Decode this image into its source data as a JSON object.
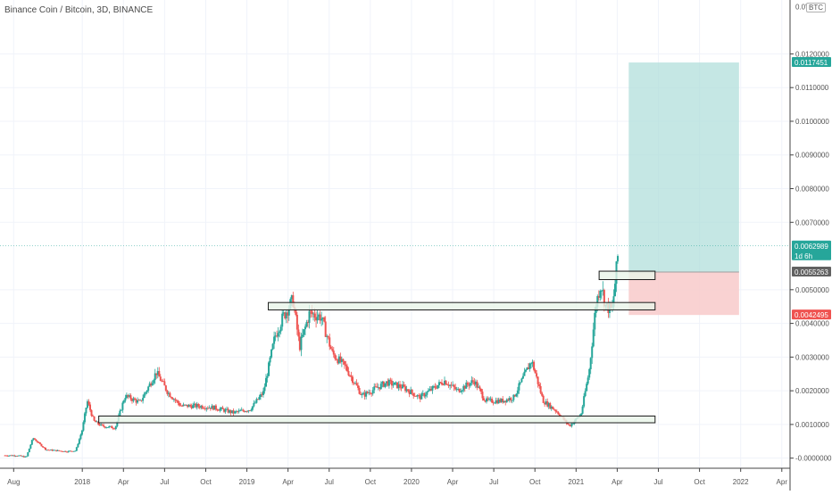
{
  "header": {
    "title": "Binance Coin / Bitcoin, 3D, BINANCE",
    "currency": "BTC"
  },
  "chart_data": {
    "type": "candlestick",
    "title": "Binance Coin / Bitcoin, 3D, BINANCE",
    "ylim": [
      -0.0003,
      0.0136
    ],
    "y_ticks": [
      "0.0120000",
      "0.0110000",
      "0.0100000",
      "0.0090000",
      "0.0080000",
      "0.0070000",
      "0.0050000",
      "0.0040000",
      "0.0030000",
      "0.0020000",
      "0.0010000",
      "-0.0000000"
    ],
    "y_tick_values": [
      0.012,
      0.011,
      0.01,
      0.009,
      0.008,
      0.007,
      0.005,
      0.004,
      0.003,
      0.002,
      0.001,
      0.0
    ],
    "x_ticks": [
      {
        "label": "Aug",
        "t": 2017.583
      },
      {
        "label": "2018",
        "t": 2018.0
      },
      {
        "label": "Apr",
        "t": 2018.25
      },
      {
        "label": "Jul",
        "t": 2018.5
      },
      {
        "label": "Oct",
        "t": 2018.75
      },
      {
        "label": "2019",
        "t": 2019.0
      },
      {
        "label": "Apr",
        "t": 2019.25
      },
      {
        "label": "Jul",
        "t": 2019.5
      },
      {
        "label": "Oct",
        "t": 2019.75
      },
      {
        "label": "2020",
        "t": 2020.0
      },
      {
        "label": "Apr",
        "t": 2020.25
      },
      {
        "label": "Jul",
        "t": 2020.5
      },
      {
        "label": "Oct",
        "t": 2020.75
      },
      {
        "label": "2021",
        "t": 2021.0
      },
      {
        "label": "Apr",
        "t": 2021.25
      },
      {
        "label": "Jul",
        "t": 2021.5
      },
      {
        "label": "Oct",
        "t": 2021.75
      },
      {
        "label": "2022",
        "t": 2022.0
      },
      {
        "label": "Apr",
        "t": 2022.25
      }
    ],
    "x_range": [
      2017.5,
      2022.3
    ],
    "price_keypoints": [
      [
        2017.53,
        8e-05
      ],
      [
        2017.6,
        8e-05
      ],
      [
        2017.66,
        3e-05
      ],
      [
        2017.7,
        0.0006
      ],
      [
        2017.78,
        0.00025
      ],
      [
        2017.9,
        0.0002
      ],
      [
        2017.96,
        0.00022
      ],
      [
        2018.0,
        0.00085
      ],
      [
        2018.03,
        0.0017
      ],
      [
        2018.07,
        0.0011
      ],
      [
        2018.12,
        0.00095
      ],
      [
        2018.2,
        0.0009
      ],
      [
        2018.26,
        0.00185
      ],
      [
        2018.35,
        0.00165
      ],
      [
        2018.45,
        0.00255
      ],
      [
        2018.52,
        0.00195
      ],
      [
        2018.6,
        0.00155
      ],
      [
        2018.7,
        0.00155
      ],
      [
        2018.8,
        0.0015
      ],
      [
        2018.92,
        0.00135
      ],
      [
        2019.02,
        0.00145
      ],
      [
        2019.1,
        0.00195
      ],
      [
        2019.17,
        0.0036
      ],
      [
        2019.22,
        0.0042
      ],
      [
        2019.28,
        0.0047
      ],
      [
        2019.32,
        0.0033
      ],
      [
        2019.38,
        0.0043
      ],
      [
        2019.45,
        0.0042
      ],
      [
        2019.52,
        0.0031
      ],
      [
        2019.6,
        0.0027
      ],
      [
        2019.7,
        0.00185
      ],
      [
        2019.85,
        0.00225
      ],
      [
        2019.95,
        0.0021
      ],
      [
        2020.05,
        0.0018
      ],
      [
        2020.2,
        0.0023
      ],
      [
        2020.28,
        0.002
      ],
      [
        2020.38,
        0.0023
      ],
      [
        2020.45,
        0.0017
      ],
      [
        2020.55,
        0.0017
      ],
      [
        2020.62,
        0.0018
      ],
      [
        2020.73,
        0.0029
      ],
      [
        2020.8,
        0.0017
      ],
      [
        2020.88,
        0.0014
      ],
      [
        2020.96,
        0.00095
      ],
      [
        2021.03,
        0.0013
      ],
      [
        2021.08,
        0.0026
      ],
      [
        2021.12,
        0.00455
      ],
      [
        2021.15,
        0.0052
      ],
      [
        2021.18,
        0.0045
      ],
      [
        2021.22,
        0.0044
      ],
      [
        2021.26,
        0.0063
      ]
    ],
    "horizontal_zones": [
      {
        "name": "zone-top",
        "from": 2021.14,
        "to": 2021.48,
        "y_low": 0.0053,
        "y_high": 0.00555
      },
      {
        "name": "zone-middle",
        "from": 2019.13,
        "to": 2021.48,
        "y_low": 0.0044,
        "y_high": 0.00462
      },
      {
        "name": "zone-bottom",
        "from": 2018.1,
        "to": 2021.48,
        "y_low": 0.00105,
        "y_high": 0.00125
      }
    ],
    "position": {
      "type": "long",
      "from": 2021.32,
      "to": 2021.99,
      "entry": 0.0055263,
      "target": 0.0117451,
      "stop": 0.0042495
    },
    "price_labels": [
      {
        "name": "target",
        "value": 0.0117451,
        "text": "0.0117451",
        "color": "#26a69a"
      },
      {
        "name": "last",
        "value": 0.0062989,
        "text": "0.0062989",
        "subtext": "1d 6h",
        "color": "#26a69a"
      },
      {
        "name": "entry",
        "value": 0.0055263,
        "text": "0.0055263",
        "color": "#616161"
      },
      {
        "name": "stop",
        "value": 0.0042495,
        "text": "0.0042495",
        "color": "#ef5350"
      }
    ],
    "partial_tick": "0.0'",
    "colors": {
      "up": "#26a69a",
      "down": "#ef5350",
      "grid": "#f0f3fa",
      "axis": "#555555",
      "target_fill": "#b2dfdb",
      "stop_fill": "#f8caca",
      "zone_fill": "#e8f5e9",
      "zone_stroke": "#1b1b1b"
    }
  }
}
